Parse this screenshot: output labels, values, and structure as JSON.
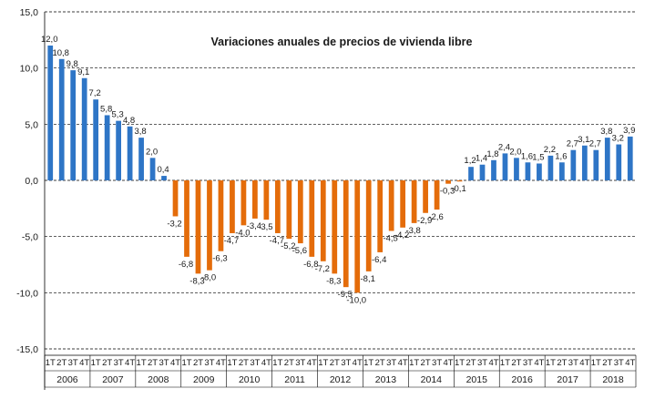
{
  "chart_data": {
    "type": "bar",
    "title": "Variaciones anuales de precios de vivienda libre",
    "xlabel": "",
    "ylabel": "",
    "ylim": [
      -15,
      15
    ],
    "yticks": [
      "15,0",
      "10,0",
      "5,0",
      "0,0",
      "-5,0",
      "-10,0",
      "-15,0"
    ],
    "grid": true,
    "legend": "none",
    "colors": {
      "positive": "#2e75c6",
      "negative": "#e46c0a"
    },
    "years": [
      "2006",
      "2007",
      "2008",
      "2009",
      "2010",
      "2011",
      "2012",
      "2013",
      "2014",
      "2015",
      "2016",
      "2017",
      "2018"
    ],
    "quarters": [
      "1T",
      "2T",
      "3T",
      "4T"
    ],
    "values": [
      12.0,
      10.8,
      9.8,
      9.1,
      7.2,
      5.8,
      5.3,
      4.8,
      3.8,
      2.0,
      0.4,
      -3.2,
      -6.8,
      -8.3,
      -8.0,
      -6.3,
      -4.7,
      -4.0,
      -3.4,
      -3.5,
      -4.7,
      -5.2,
      -5.6,
      -6.8,
      -7.2,
      -8.3,
      -9.5,
      -10.0,
      -8.1,
      -6.4,
      -4.5,
      -4.2,
      -3.8,
      -2.9,
      -2.6,
      -0.3,
      -0.1,
      1.2,
      1.4,
      1.8,
      2.4,
      2.0,
      1.6,
      1.5,
      2.2,
      1.6,
      2.7,
      3.1,
      2.7,
      3.8,
      3.2,
      3.9
    ],
    "labels": [
      "12,0",
      "10,8",
      "9,8",
      "9,1",
      "7,2",
      "5,8",
      "5,3",
      "4,8",
      "3,8",
      "2,0",
      "0,4",
      "-3,2",
      "-6,8",
      "-8,3",
      "-8,0",
      "-6,3",
      "-4,7",
      "-4,0",
      "-3,4",
      "-3,5",
      "-4,7",
      "-5,2",
      "-5,6",
      "-6,8",
      "-7,2",
      "-8,3",
      "-9,5",
      "-10,0",
      "-8,1",
      "-6,4",
      "-4,5",
      "-4,2",
      "-3,8",
      "-2,9",
      "-2,6",
      "-0,3",
      "-0,1",
      "1,2",
      "1,4",
      "1,8",
      "2,4",
      "2,0",
      "1,6",
      "1,5",
      "2,2",
      "1,6",
      "2,7",
      "3,1",
      "2,7",
      "3,8",
      "3,2",
      "3,9"
    ]
  }
}
